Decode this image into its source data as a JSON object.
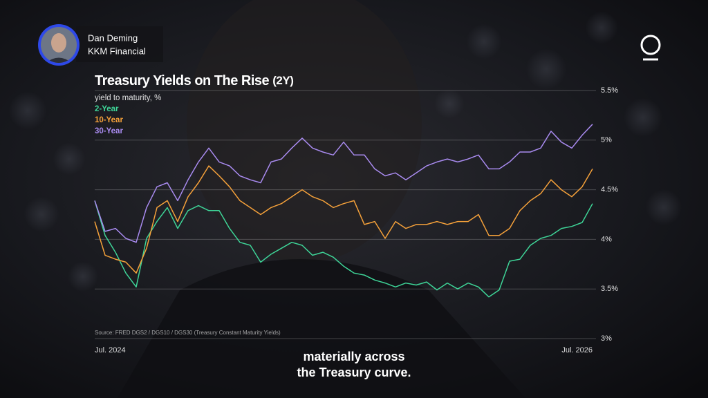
{
  "speaker": {
    "name": "Dan Deming",
    "organization": "KKM Financial"
  },
  "caption": [
    "materially across",
    "the Treasury curve."
  ],
  "chart_data": {
    "type": "line",
    "title": "Treasury Yields on The Rise",
    "period": "(2Y)",
    "subtitle": "yield to maturity, %",
    "source": "Source: FRED DGS2 / DGS10 / DGS30 (Treasury Constant Maturity Yields)",
    "legend": "upper left",
    "grid": true,
    "ylim": [
      3,
      5.5
    ],
    "yticks": [
      {
        "value": 3,
        "label": "3%"
      },
      {
        "value": 3.5,
        "label": "3.5%"
      },
      {
        "value": 4,
        "label": "4%"
      },
      {
        "value": 4.5,
        "label": "4.5%"
      },
      {
        "value": 5,
        "label": "5%"
      },
      {
        "value": 5.5,
        "label": "5.5%"
      }
    ],
    "categories": [
      "Jul. 2024",
      null,
      null,
      null,
      null,
      null,
      null,
      null,
      null,
      null,
      null,
      null,
      null,
      null,
      null,
      null,
      null,
      null,
      null,
      null,
      null,
      null,
      null,
      null,
      null,
      null,
      null,
      null,
      null,
      null,
      null,
      null,
      null,
      null,
      null,
      null,
      null,
      null,
      null,
      null,
      null,
      null,
      null,
      null,
      null,
      null,
      null,
      null,
      "Jul. 2026"
    ],
    "series": [
      {
        "name": "2-Year",
        "color": "#3ed598",
        "values": [
          4.39,
          4.04,
          3.87,
          3.66,
          3.52,
          4.01,
          4.18,
          4.32,
          4.11,
          4.29,
          4.34,
          4.29,
          4.29,
          4.11,
          3.97,
          3.94,
          3.77,
          3.85,
          3.91,
          3.97,
          3.94,
          3.84,
          3.87,
          3.82,
          3.73,
          3.66,
          3.64,
          3.59,
          3.56,
          3.52,
          3.56,
          3.54,
          3.57,
          3.49,
          3.56,
          3.5,
          3.56,
          3.52,
          3.42,
          3.49,
          3.78,
          3.8,
          3.94,
          4.01,
          4.04,
          4.11,
          4.13,
          4.17,
          4.36
        ]
      },
      {
        "name": "10-Year",
        "color": "#f5a13a",
        "values": [
          4.18,
          3.84,
          3.8,
          3.77,
          3.66,
          3.91,
          4.32,
          4.39,
          4.18,
          4.43,
          4.57,
          4.74,
          4.64,
          4.53,
          4.39,
          4.32,
          4.25,
          4.32,
          4.36,
          4.43,
          4.5,
          4.43,
          4.39,
          4.32,
          4.36,
          4.39,
          4.15,
          4.18,
          4.01,
          4.18,
          4.11,
          4.15,
          4.15,
          4.18,
          4.15,
          4.18,
          4.18,
          4.25,
          4.04,
          4.04,
          4.11,
          4.29,
          4.39,
          4.46,
          4.6,
          4.5,
          4.43,
          4.53,
          4.71
        ]
      },
      {
        "name": "30-Year",
        "color": "#a98bf0",
        "values": [
          4.39,
          4.08,
          4.11,
          4.01,
          3.97,
          4.32,
          4.53,
          4.57,
          4.39,
          4.6,
          4.78,
          4.92,
          4.78,
          4.74,
          4.64,
          4.6,
          4.57,
          4.78,
          4.81,
          4.92,
          5.02,
          4.92,
          4.88,
          4.85,
          4.98,
          4.85,
          4.85,
          4.71,
          4.64,
          4.67,
          4.6,
          4.67,
          4.74,
          4.78,
          4.81,
          4.78,
          4.81,
          4.85,
          4.71,
          4.71,
          4.78,
          4.88,
          4.88,
          4.92,
          5.09,
          4.98,
          4.92,
          5.05,
          5.16
        ]
      }
    ]
  }
}
